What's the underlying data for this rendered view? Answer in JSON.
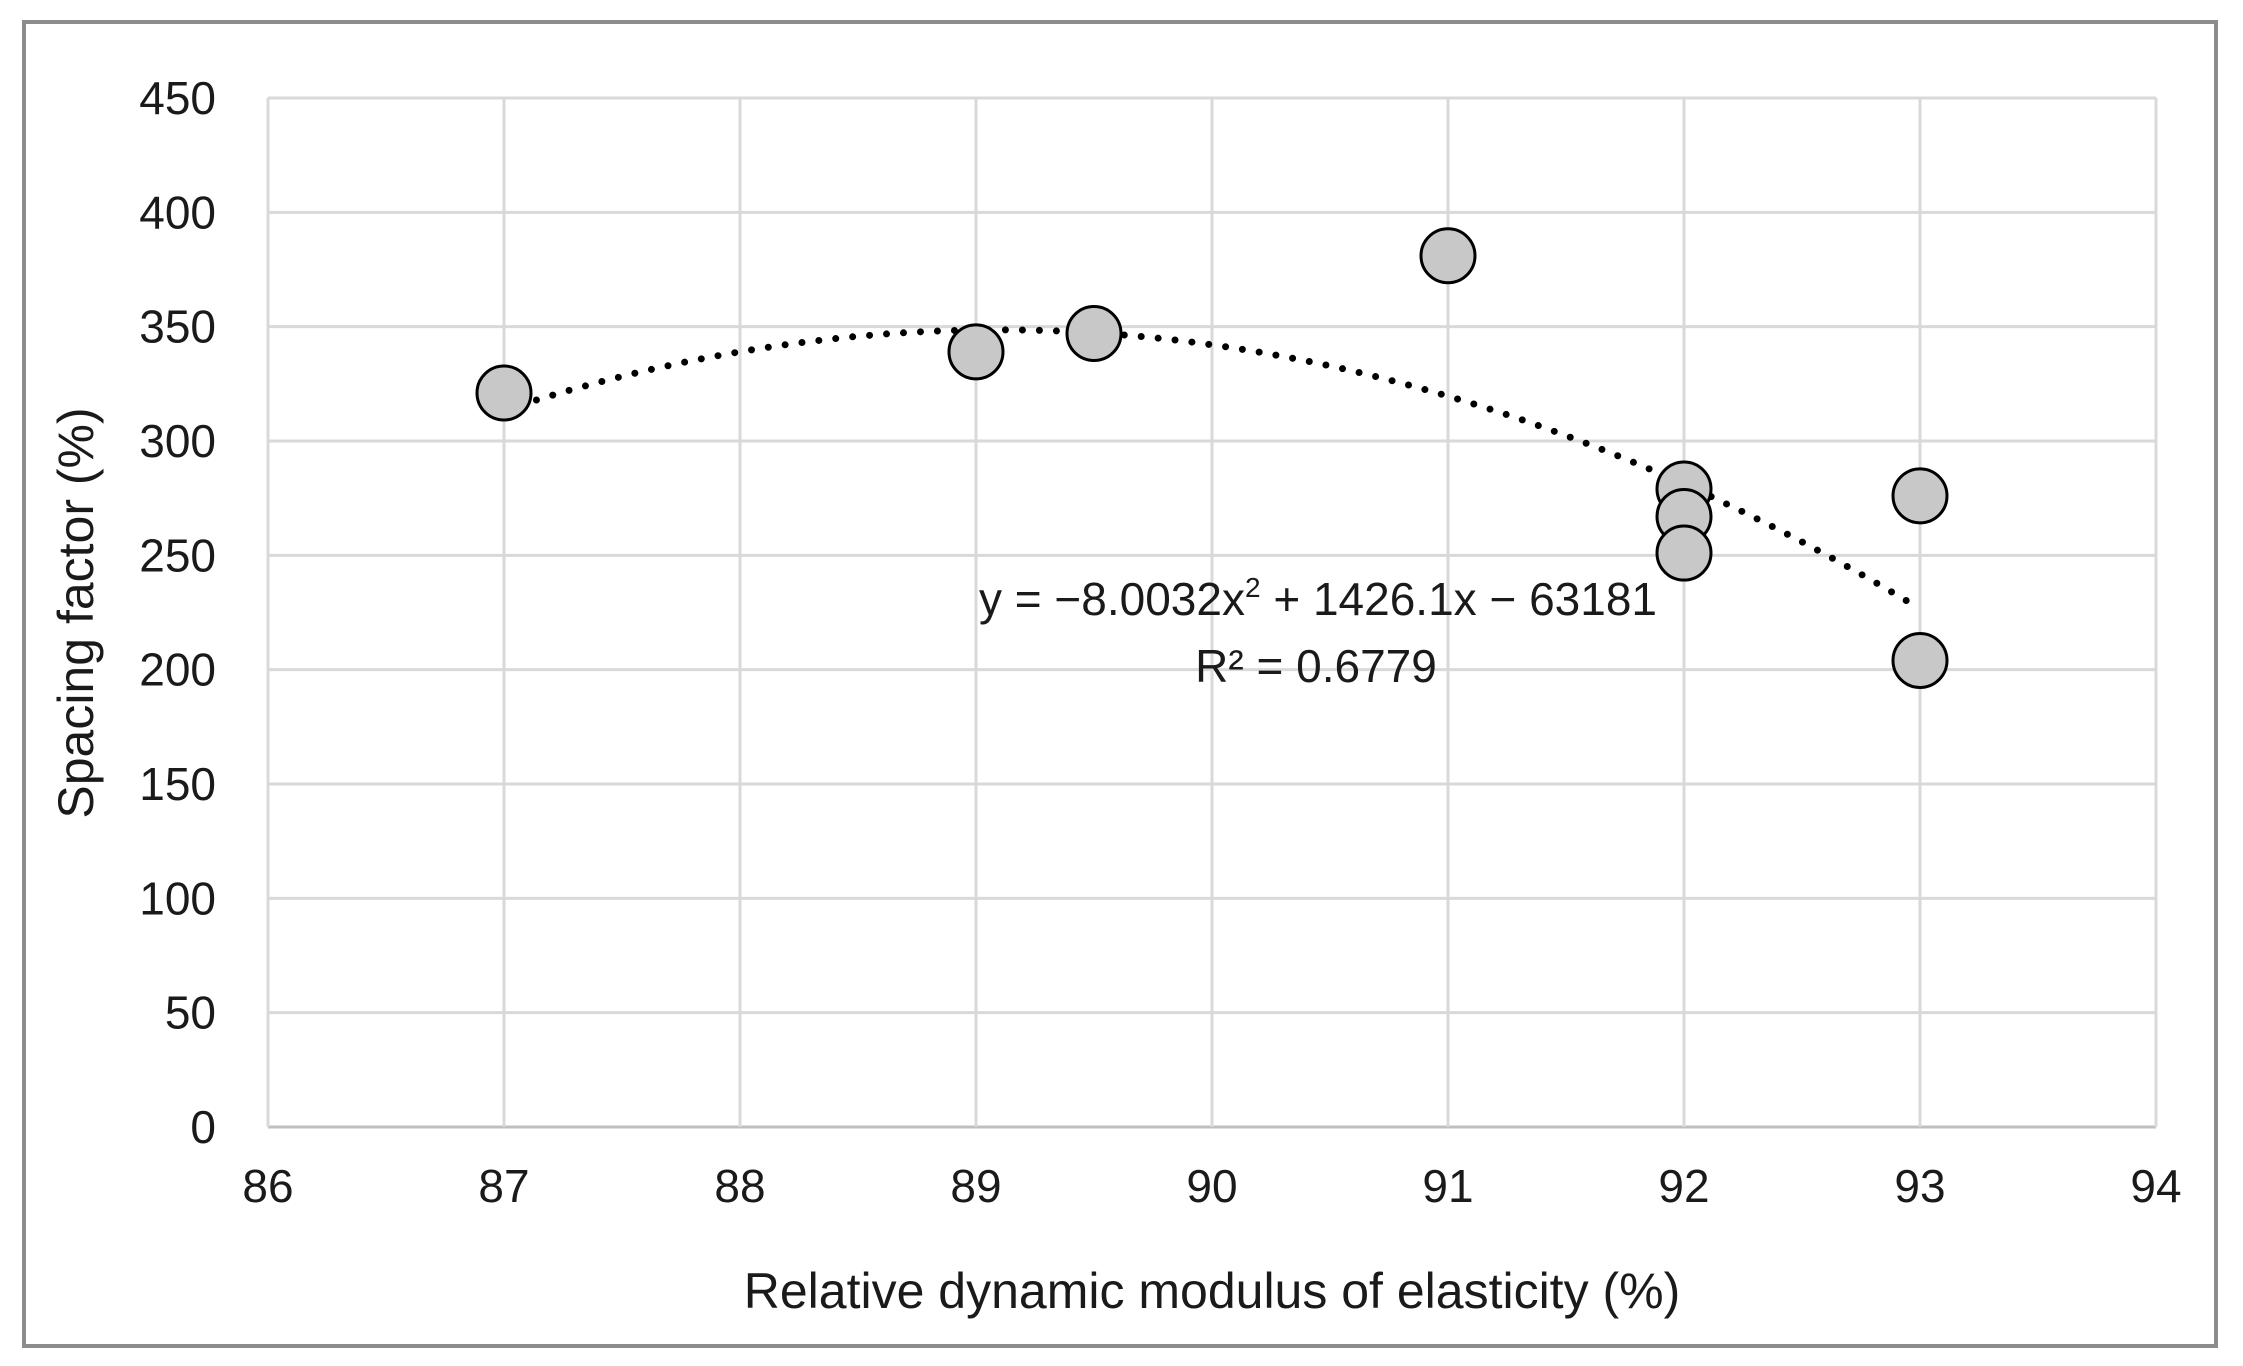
{
  "chart_data": {
    "type": "scatter",
    "xlabel": "Relative dynamic modulus of elasticity (%)",
    "ylabel": "Spacing factor (%)",
    "xlim": [
      86,
      94
    ],
    "ylim": [
      0,
      450
    ],
    "x_ticks": [
      "86",
      "87",
      "88",
      "89",
      "90",
      "91",
      "92",
      "93",
      "94"
    ],
    "y_ticks": [
      "0",
      "50",
      "100",
      "150",
      "200",
      "250",
      "300",
      "350",
      "400",
      "450"
    ],
    "grid": true,
    "series": [
      {
        "name": "Spacing factor",
        "points": [
          {
            "x": 87,
            "y": 321
          },
          {
            "x": 89,
            "y": 339
          },
          {
            "x": 89.5,
            "y": 347
          },
          {
            "x": 91,
            "y": 381
          },
          {
            "x": 92,
            "y": 279
          },
          {
            "x": 92,
            "y": 267
          },
          {
            "x": 92,
            "y": 251
          },
          {
            "x": 93,
            "y": 276
          },
          {
            "x": 93,
            "y": 204
          }
        ]
      }
    ],
    "trendline": {
      "type": "polynomial",
      "coefficients": [
        -8.0032,
        1426.1,
        -63181
      ],
      "x_range": [
        87,
        93
      ],
      "equation_parts": {
        "lead": "y = −8.0032x",
        "exp": "2",
        "tail": " + 1426.1x − 63181"
      },
      "r_squared_label": "R² = 0.6779"
    },
    "colors": {
      "marker_fill": "#c8c8c8",
      "marker_stroke": "#000000",
      "grid": "#d9d9d9",
      "trend": "#000000"
    }
  }
}
